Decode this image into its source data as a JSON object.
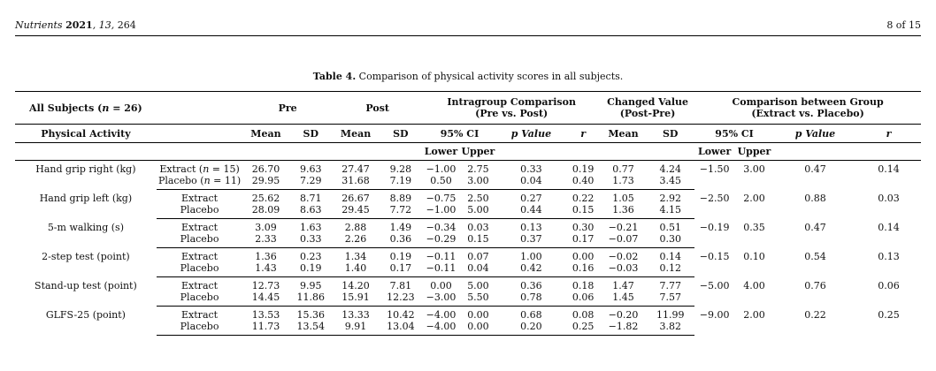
{
  "header": {
    "journal": "Nutrients",
    "year": "2021",
    "volume": "13",
    "article": "264",
    "page": "8 of 15"
  },
  "caption": {
    "label": "Table 4.",
    "text": "Comparison of physical activity scores in all subjects."
  },
  "head": {
    "all_subjects": "All Subjects (n = 26)",
    "pre": "Pre",
    "post": "Post",
    "intragroup_l1": "Intragroup Comparison",
    "intragroup_l2": "(Pre vs. Post)",
    "changed_l1": "Changed Value",
    "changed_l2": "(Post-Pre)",
    "between_l1": "Comparison between Group",
    "between_l2": "(Extract vs. Placebo)",
    "activity": "Physical Activity",
    "mean": "Mean",
    "sd": "SD",
    "ci": "95% CI",
    "p_value": "p Value",
    "r": "r",
    "lower": "Lower",
    "upper": "Upper"
  },
  "rows": [
    {
      "activity": "Hand grip right (kg)",
      "groups": [
        {
          "group": "Extract (n = 15)",
          "pre_mean": "26.70",
          "pre_sd": "9.63",
          "post_mean": "27.47",
          "post_sd": "9.28",
          "ci_lower": "−1.00",
          "ci_upper": "2.75",
          "p": "0.33",
          "r": "0.19",
          "chg_mean": "0.77",
          "chg_sd": "4.24"
        },
        {
          "group": "Placebo (n = 11)",
          "pre_mean": "29.95",
          "pre_sd": "7.29",
          "post_mean": "31.68",
          "post_sd": "7.19",
          "ci_lower": "0.50",
          "ci_upper": "3.00",
          "p": "0.04",
          "r": "0.40",
          "chg_mean": "1.73",
          "chg_sd": "3.45"
        }
      ],
      "between": {
        "lower": "−1.50",
        "upper": "3.00",
        "p": "0.47",
        "r": "0.14"
      }
    },
    {
      "activity": "Hand grip left (kg)",
      "groups": [
        {
          "group": "Extract",
          "pre_mean": "25.62",
          "pre_sd": "8.71",
          "post_mean": "26.67",
          "post_sd": "8.89",
          "ci_lower": "−0.75",
          "ci_upper": "2.50",
          "p": "0.27",
          "r": "0.22",
          "chg_mean": "1.05",
          "chg_sd": "2.92"
        },
        {
          "group": "Placebo",
          "pre_mean": "28.09",
          "pre_sd": "8.63",
          "post_mean": "29.45",
          "post_sd": "7.72",
          "ci_lower": "−1.00",
          "ci_upper": "5.00",
          "p": "0.44",
          "r": "0.15",
          "chg_mean": "1.36",
          "chg_sd": "4.15"
        }
      ],
      "between": {
        "lower": "−2.50",
        "upper": "2.00",
        "p": "0.88",
        "r": "0.03"
      }
    },
    {
      "activity": "5-m walking (s)",
      "groups": [
        {
          "group": "Extract",
          "pre_mean": "3.09",
          "pre_sd": "1.63",
          "post_mean": "2.88",
          "post_sd": "1.49",
          "ci_lower": "−0.34",
          "ci_upper": "0.03",
          "p": "0.13",
          "r": "0.30",
          "chg_mean": "−0.21",
          "chg_sd": "0.51"
        },
        {
          "group": "Placebo",
          "pre_mean": "2.33",
          "pre_sd": "0.33",
          "post_mean": "2.26",
          "post_sd": "0.36",
          "ci_lower": "−0.29",
          "ci_upper": "0.15",
          "p": "0.37",
          "r": "0.17",
          "chg_mean": "−0.07",
          "chg_sd": "0.30"
        }
      ],
      "between": {
        "lower": "−0.19",
        "upper": "0.35",
        "p": "0.47",
        "r": "0.14"
      }
    },
    {
      "activity": "2-step test (point)",
      "groups": [
        {
          "group": "Extract",
          "pre_mean": "1.36",
          "pre_sd": "0.23",
          "post_mean": "1.34",
          "post_sd": "0.19",
          "ci_lower": "−0.11",
          "ci_upper": "0.07",
          "p": "1.00",
          "r": "0.00",
          "chg_mean": "−0.02",
          "chg_sd": "0.14"
        },
        {
          "group": "Placebo",
          "pre_mean": "1.43",
          "pre_sd": "0.19",
          "post_mean": "1.40",
          "post_sd": "0.17",
          "ci_lower": "−0.11",
          "ci_upper": "0.04",
          "p": "0.42",
          "r": "0.16",
          "chg_mean": "−0.03",
          "chg_sd": "0.12"
        }
      ],
      "between": {
        "lower": "−0.15",
        "upper": "0.10",
        "p": "0.54",
        "r": "0.13"
      }
    },
    {
      "activity": "Stand-up test (point)",
      "groups": [
        {
          "group": "Extract",
          "pre_mean": "12.73",
          "pre_sd": "9.95",
          "post_mean": "14.20",
          "post_sd": "7.81",
          "ci_lower": "0.00",
          "ci_upper": "5.00",
          "p": "0.36",
          "r": "0.18",
          "chg_mean": "1.47",
          "chg_sd": "7.77"
        },
        {
          "group": "Placebo",
          "pre_mean": "14.45",
          "pre_sd": "11.86",
          "post_mean": "15.91",
          "post_sd": "12.23",
          "ci_lower": "−3.00",
          "ci_upper": "5.50",
          "p": "0.78",
          "r": "0.06",
          "chg_mean": "1.45",
          "chg_sd": "7.57"
        }
      ],
      "between": {
        "lower": "−5.00",
        "upper": "4.00",
        "p": "0.76",
        "r": "0.06"
      }
    },
    {
      "activity": "GLFS-25 (point)",
      "groups": [
        {
          "group": "Extract",
          "pre_mean": "13.53",
          "pre_sd": "15.36",
          "post_mean": "13.33",
          "post_sd": "10.42",
          "ci_lower": "−4.00",
          "ci_upper": "0.00",
          "p": "0.68",
          "r": "0.08",
          "chg_mean": "−0.20",
          "chg_sd": "11.99"
        },
        {
          "group": "Placebo",
          "pre_mean": "11.73",
          "pre_sd": "13.54",
          "post_mean": "9.91",
          "post_sd": "13.04",
          "ci_lower": "−4.00",
          "ci_upper": "0.00",
          "p": "0.20",
          "r": "0.25",
          "chg_mean": "−1.82",
          "chg_sd": "3.82"
        }
      ],
      "between": {
        "lower": "−9.00",
        "upper": "2.00",
        "p": "0.22",
        "r": "0.25"
      }
    }
  ]
}
